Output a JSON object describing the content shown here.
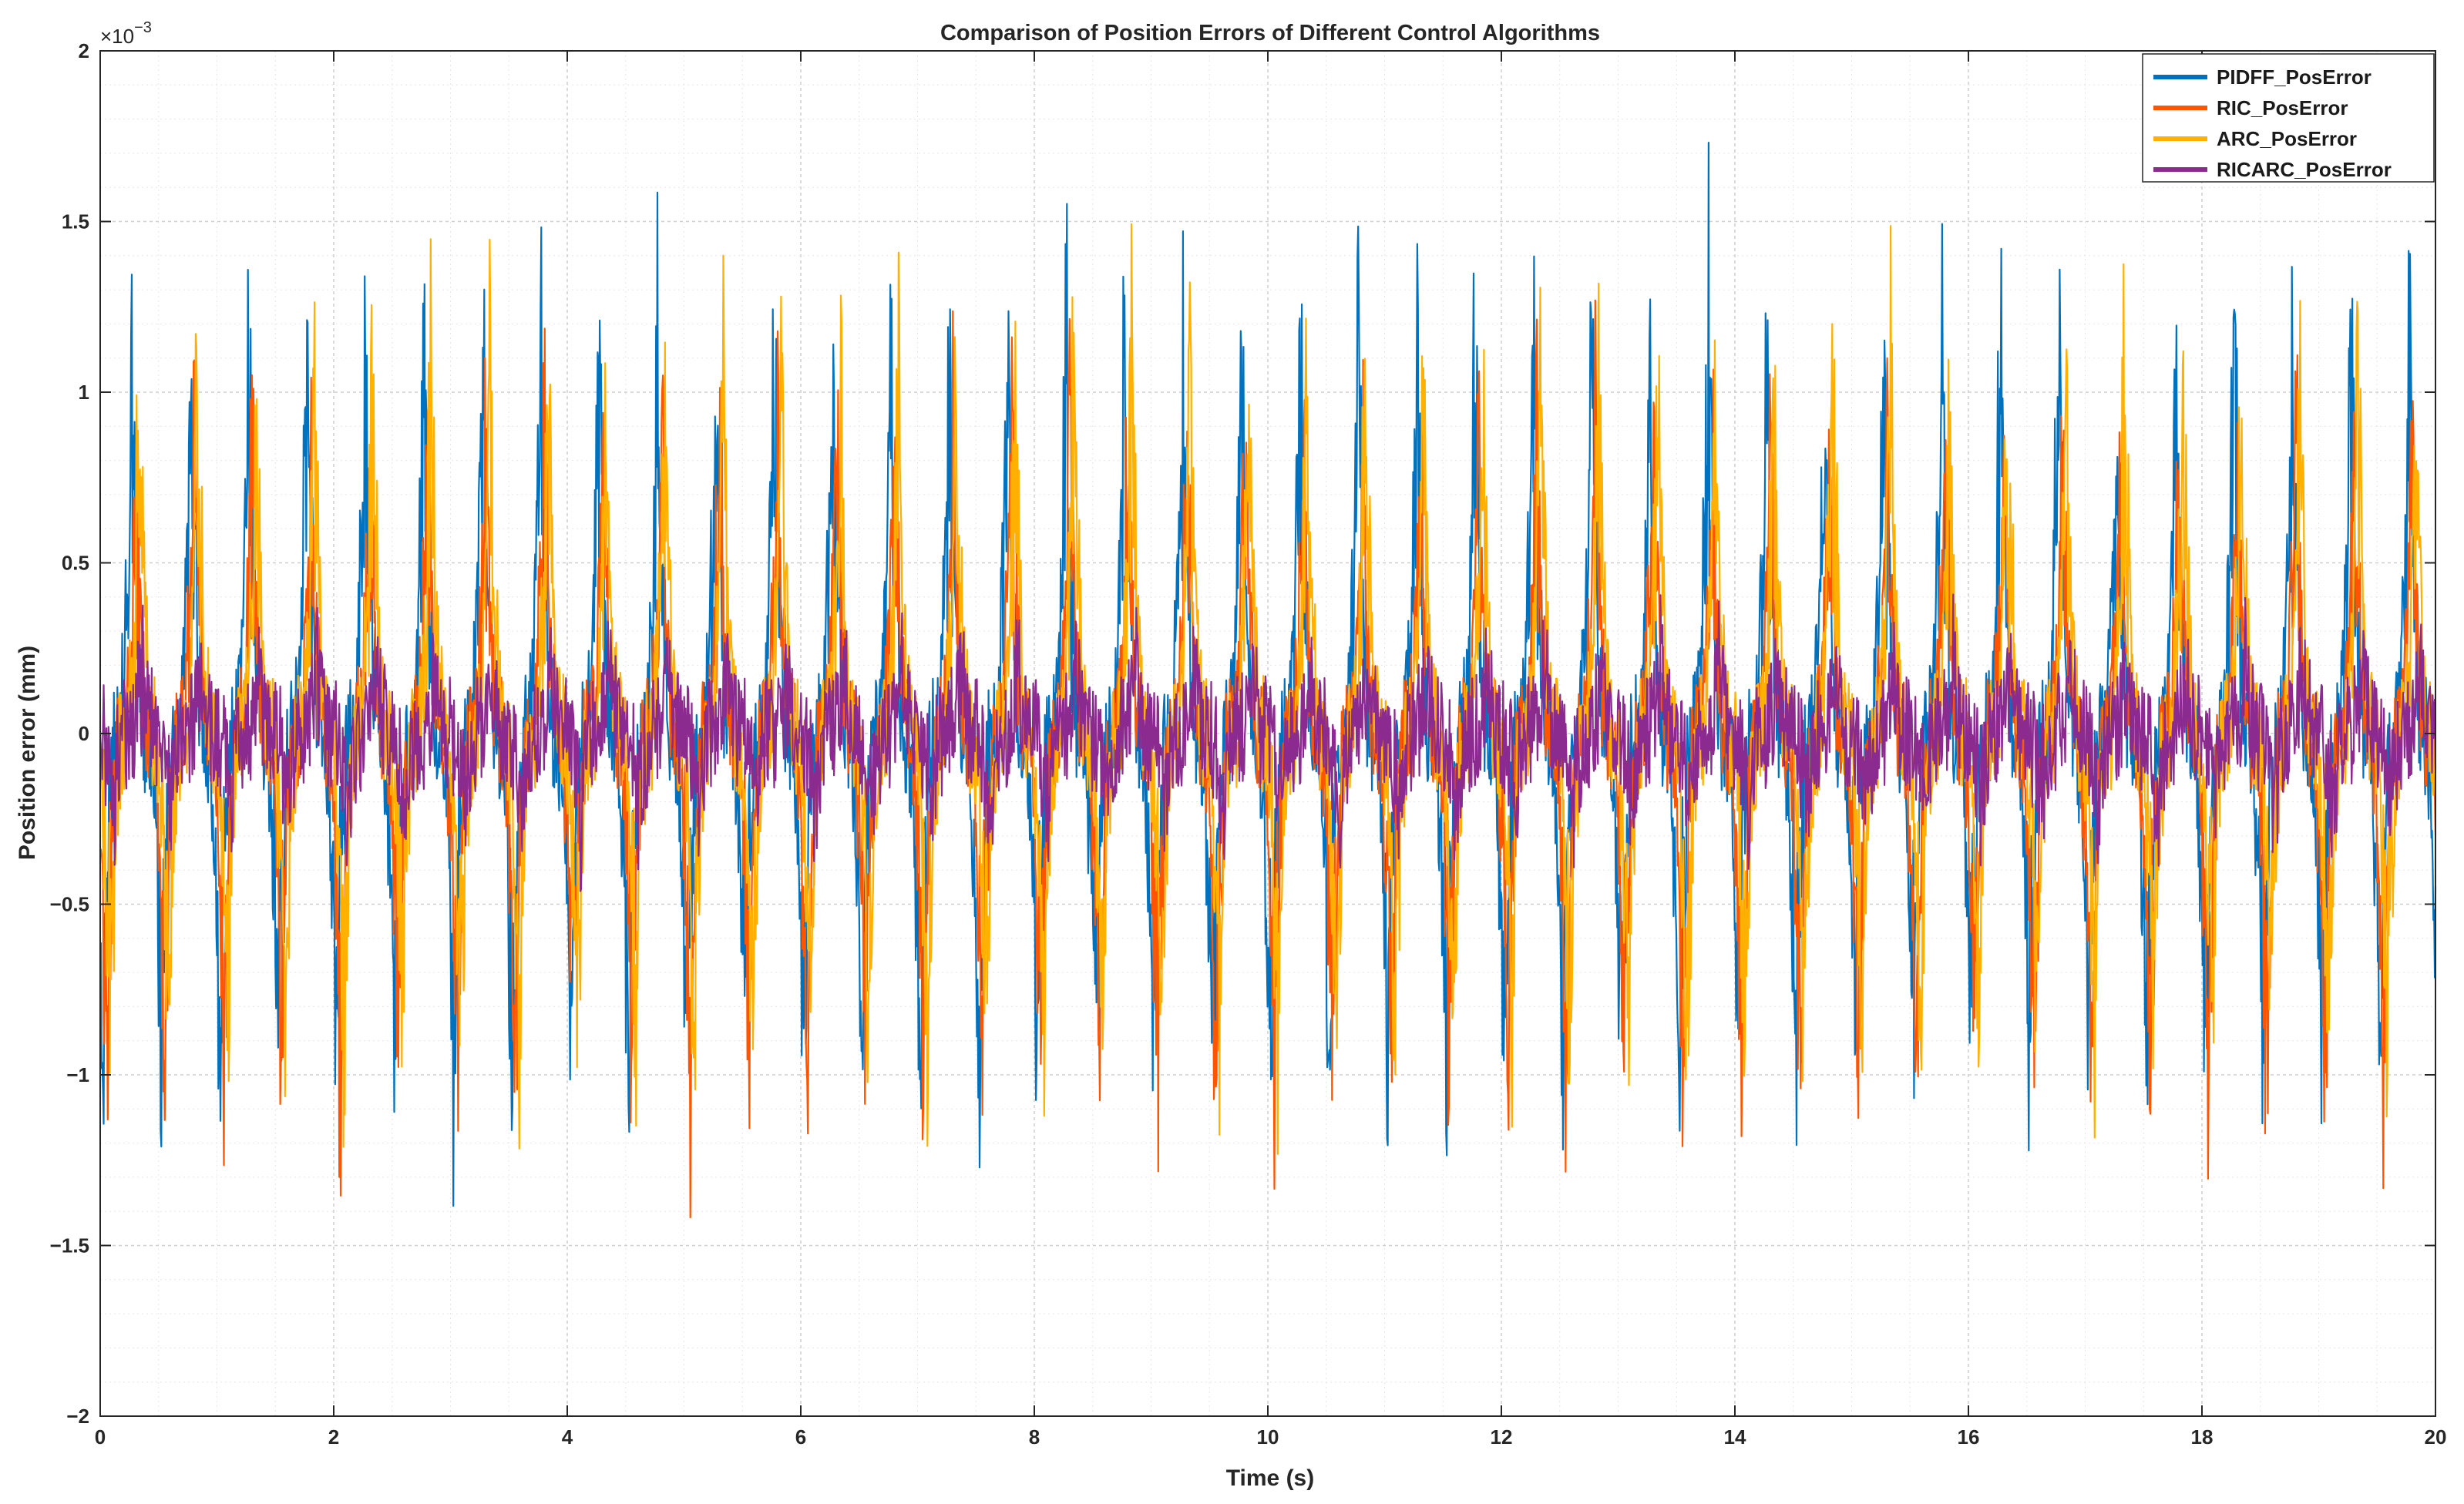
{
  "chart_data": {
    "type": "line",
    "title": "Comparison of Position Errors of Different Control Algorithms",
    "xlabel": "Time (s)",
    "ylabel": "Position error (mm)",
    "y_exponent_base": "×10",
    "y_exponent_power": "−3",
    "xlim": [
      0,
      20
    ],
    "ylim": [
      -2,
      2
    ],
    "x_ticks": [
      0,
      2,
      4,
      6,
      8,
      10,
      12,
      14,
      16,
      18,
      20
    ],
    "x_tick_labels": [
      "0",
      "2",
      "4",
      "6",
      "8",
      "10",
      "12",
      "14",
      "16",
      "18",
      "20"
    ],
    "y_ticks": [
      2,
      1.5,
      1,
      0.5,
      0,
      -0.5,
      -1,
      -1.5,
      -2
    ],
    "y_tick_labels": [
      "2",
      "1.5",
      "1",
      "0.5",
      "0",
      "−0.5",
      "−1",
      "−1.5",
      "−2"
    ],
    "grid": true,
    "minor_grid": true,
    "legend_position": "top-right",
    "period_s": 0.5,
    "series": [
      {
        "name": "PIDFF_PosError",
        "color": "#0072BD",
        "peak_max": 1.6,
        "peak_min": -1.3,
        "noise": 0.3
      },
      {
        "name": "RIC_PosError",
        "color": "#FF5500",
        "peak_max": 1.2,
        "peak_min": -1.35,
        "noise": 0.28
      },
      {
        "name": "ARC_PosError",
        "color": "#FFB000",
        "peak_max": 1.45,
        "peak_min": -1.2,
        "noise": 0.3
      },
      {
        "name": "RICARC_PosError",
        "color": "#8B2A8F",
        "peak_max": 0.28,
        "peak_min": -0.32,
        "noise": 0.28
      }
    ]
  }
}
